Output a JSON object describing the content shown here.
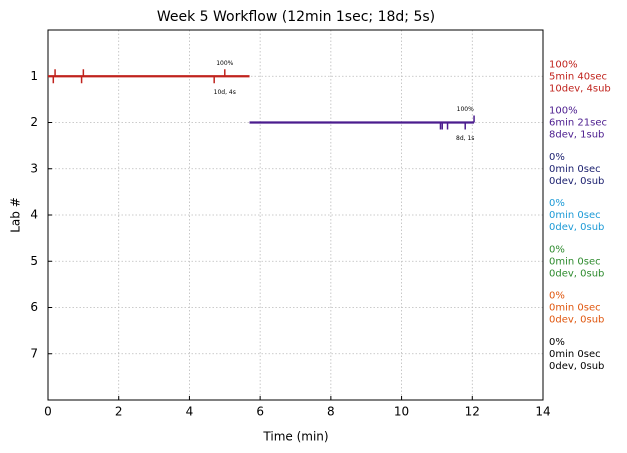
{
  "chart_data": {
    "type": "timeline",
    "title": "Week 5 Workflow (12min 1sec; 18d; 5s)",
    "x_label": "Time (min)",
    "y_label": "Lab #",
    "xlim": [
      0,
      14
    ],
    "xticks": [
      0,
      2,
      4,
      6,
      8,
      10,
      12,
      14
    ],
    "ylim": [
      8,
      0
    ],
    "yticks": [
      1,
      2,
      3,
      4,
      5,
      6,
      7
    ],
    "grid": true,
    "series": [
      {
        "color": "#c0231d",
        "x": [
          0,
          5.7
        ],
        "values": [
          1,
          1
        ],
        "events_up": [
          0.2,
          1.0,
          5.0
        ],
        "events_down": [
          0.15,
          0.95,
          4.7
        ],
        "annotation_top": "100%",
        "annotation_bottom": "10d, 4s",
        "annotation_x": 5.0
      },
      {
        "color": "#4b1c8e",
        "x": [
          5.7,
          12.05
        ],
        "values": [
          2,
          2
        ],
        "events_up": [
          12.05
        ],
        "events_down": [
          11.1,
          11.15,
          11.3,
          11.8
        ],
        "annotation_top": "100%",
        "annotation_bottom": "8d, 1s",
        "annotation_x": 11.8
      }
    ],
    "summaries": [
      {
        "color": "#c0231d",
        "lines": [
          "100%",
          "5min 40sec",
          "10dev, 4sub"
        ]
      },
      {
        "color": "#4b1c8e",
        "lines": [
          "100%",
          "6min 21sec",
          "8dev, 1sub"
        ]
      },
      {
        "color": "#1a1f6e",
        "lines": [
          "0%",
          "0min 0sec",
          "0dev, 0sub"
        ]
      },
      {
        "color": "#1c9ad6",
        "lines": [
          "0%",
          "0min 0sec",
          "0dev, 0sub"
        ]
      },
      {
        "color": "#2e8b2e",
        "lines": [
          "0%",
          "0min 0sec",
          "0dev, 0sub"
        ]
      },
      {
        "color": "#e0570f",
        "lines": [
          "0%",
          "0min 0sec",
          "0dev, 0sub"
        ]
      },
      {
        "color": "#000000",
        "lines": [
          "0%",
          "0min 0sec",
          "0dev, 0sub"
        ]
      }
    ]
  }
}
